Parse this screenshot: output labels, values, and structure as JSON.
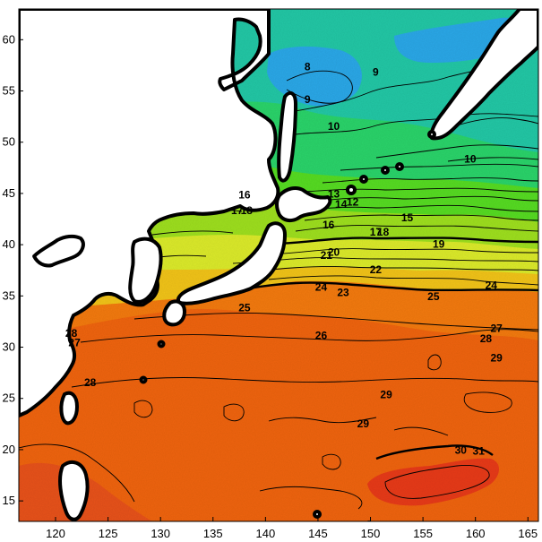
{
  "chart_data": {
    "type": "heatmap",
    "x_ticks": [
      "120",
      "125",
      "130",
      "135",
      "140",
      "145",
      "150",
      "155",
      "160",
      "165"
    ],
    "y_ticks": [
      "60",
      "55",
      "50",
      "45",
      "40",
      "35",
      "30",
      "25",
      "20",
      "15"
    ],
    "xlim": [
      116.5,
      166
    ],
    "ylim": [
      13,
      63
    ],
    "color_bands": [
      {
        "temp": 8,
        "color": "#2aa8e8"
      },
      {
        "temp": 10,
        "color": "#22c8a6"
      },
      {
        "temp": 13,
        "color": "#2ad46a"
      },
      {
        "temp": 16,
        "color": "#56dc22"
      },
      {
        "temp": 19,
        "color": "#9ee01e"
      },
      {
        "temp": 22,
        "color": "#dceb2a"
      },
      {
        "temp": 24,
        "color": "#f2c418"
      },
      {
        "temp": 26,
        "color": "#f47a0e"
      },
      {
        "temp": 28,
        "color": "#f0640e"
      },
      {
        "temp": 30,
        "color": "#e83a18"
      }
    ],
    "contour_labels": [
      {
        "text": "8",
        "lon": 144,
        "lat": 57
      },
      {
        "text": "9",
        "lon": 150.5,
        "lat": 56.5
      },
      {
        "text": "9",
        "lon": 144,
        "lat": 53.8
      },
      {
        "text": "10",
        "lon": 146.5,
        "lat": 51.2
      },
      {
        "text": "10",
        "lon": 159.5,
        "lat": 48
      },
      {
        "text": "16",
        "lon": 138,
        "lat": 44.5
      },
      {
        "text": "17",
        "lon": 137.3,
        "lat": 43
      },
      {
        "text": "18",
        "lon": 138.2,
        "lat": 43
      },
      {
        "text": "13",
        "lon": 146.5,
        "lat": 44.6
      },
      {
        "text": "14",
        "lon": 147.2,
        "lat": 43.6
      },
      {
        "text": "12",
        "lon": 148.3,
        "lat": 43.8
      },
      {
        "text": "15",
        "lon": 153.5,
        "lat": 42.3
      },
      {
        "text": "16",
        "lon": 146,
        "lat": 41.6
      },
      {
        "text": "17",
        "lon": 150.5,
        "lat": 40.9
      },
      {
        "text": "18",
        "lon": 151.2,
        "lat": 40.9
      },
      {
        "text": "19",
        "lon": 156.5,
        "lat": 39.7
      },
      {
        "text": "20",
        "lon": 146.5,
        "lat": 38.9
      },
      {
        "text": "21",
        "lon": 145.8,
        "lat": 38.6
      },
      {
        "text": "22",
        "lon": 150.5,
        "lat": 37.2
      },
      {
        "text": "23",
        "lon": 147.4,
        "lat": 35
      },
      {
        "text": "24",
        "lon": 145.3,
        "lat": 35.5
      },
      {
        "text": "25",
        "lon": 156,
        "lat": 34.6
      },
      {
        "text": "24",
        "lon": 161.5,
        "lat": 35.7
      },
      {
        "text": "25",
        "lon": 138,
        "lat": 33.5
      },
      {
        "text": "27",
        "lon": 162,
        "lat": 31.5
      },
      {
        "text": "28",
        "lon": 161,
        "lat": 30.5
      },
      {
        "text": "26",
        "lon": 145.3,
        "lat": 30.8
      },
      {
        "text": "29",
        "lon": 162,
        "lat": 28.6
      },
      {
        "text": "28",
        "lon": 121.5,
        "lat": 31
      },
      {
        "text": "27",
        "lon": 121.8,
        "lat": 30.1
      },
      {
        "text": "28",
        "lon": 123.3,
        "lat": 26.2
      },
      {
        "text": "29",
        "lon": 151.5,
        "lat": 25
      },
      {
        "text": "29",
        "lon": 149.3,
        "lat": 22.2
      },
      {
        "text": "30",
        "lon": 158.6,
        "lat": 19.6
      },
      {
        "text": "31",
        "lon": 160.3,
        "lat": 19.5
      }
    ]
  }
}
